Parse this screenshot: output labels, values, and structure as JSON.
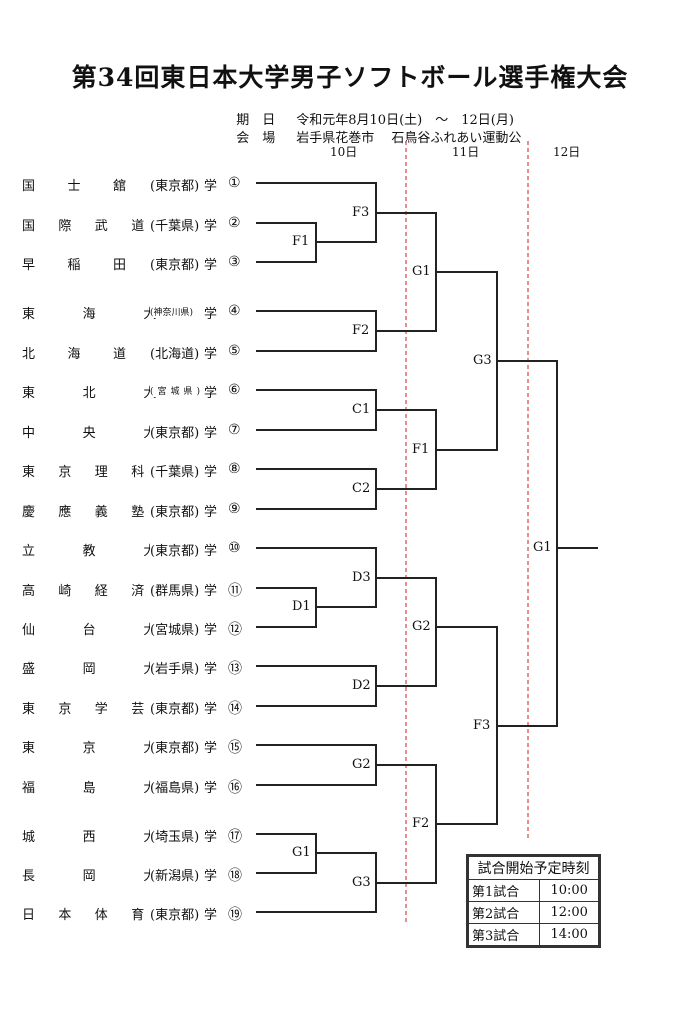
{
  "title": "第34回東日本大学男子ソフトボール選手権大会",
  "meta": {
    "date_label": "期　日",
    "date_value": "令和元年8月10日(土)　～　12日(月)",
    "venue_label": "会　場",
    "venue_value": "岩手県花巻市　 石鳥谷ふれあい運動公"
  },
  "days": [
    "10日",
    "11日",
    "12日"
  ],
  "teams": [
    {
      "name": "国士舘大学",
      "pref": "(東京都)",
      "num": "①"
    },
    {
      "name": "国際武道大学",
      "pref": "(千葉県)",
      "num": "②"
    },
    {
      "name": "早稲田大学",
      "pref": "(東京都)",
      "num": "③"
    },
    {
      "name": "東海大学",
      "pref": "(神奈川県)",
      "num": "④"
    },
    {
      "name": "北海道大学",
      "pref": "(北海道)",
      "num": "⑤"
    },
    {
      "name": "東北大学",
      "pref": "(宮城県)",
      "num": "⑥"
    },
    {
      "name": "中央大学",
      "pref": "(東京都)",
      "num": "⑦"
    },
    {
      "name": "東京理科大学",
      "pref": "(千葉県)",
      "num": "⑧"
    },
    {
      "name": "慶應義塾大学",
      "pref": "(東京都)",
      "num": "⑨"
    },
    {
      "name": "立教大学",
      "pref": "(東京都)",
      "num": "⑩"
    },
    {
      "name": "高崎経済大学",
      "pref": "(群馬県)",
      "num": "⑪"
    },
    {
      "name": "仙台大学",
      "pref": "(宮城県)",
      "num": "⑫"
    },
    {
      "name": "盛岡大学",
      "pref": "(岩手県)",
      "num": "⑬"
    },
    {
      "name": "東京学芸大学",
      "pref": "(東京都)",
      "num": "⑭"
    },
    {
      "name": "東京大学",
      "pref": "(東京都)",
      "num": "⑮"
    },
    {
      "name": "福島大学",
      "pref": "(福島県)",
      "num": "⑯"
    },
    {
      "name": "城西大学",
      "pref": "(埼玉県)",
      "num": "⑰"
    },
    {
      "name": "長岡大学",
      "pref": "(新潟県)",
      "num": "⑱"
    },
    {
      "name": "日本体育大学",
      "pref": "(東京都)",
      "num": "⑲"
    }
  ],
  "match_labels": [
    "F3",
    "F1",
    "F2",
    "C1",
    "C2",
    "D3",
    "D1",
    "D2",
    "G2",
    "G1",
    "G3",
    "G1",
    "F1",
    "G2",
    "F2",
    "G3",
    "F3",
    "G1"
  ],
  "schedule": {
    "header": "試合開始予定時刻",
    "rows": [
      {
        "game": "第1試合",
        "time": "10:00"
      },
      {
        "game": "第2試合",
        "time": "12:00"
      },
      {
        "game": "第3試合",
        "time": "14:00"
      }
    ]
  },
  "colors": {
    "line": "#222222",
    "day_divider": "#d9534f"
  }
}
